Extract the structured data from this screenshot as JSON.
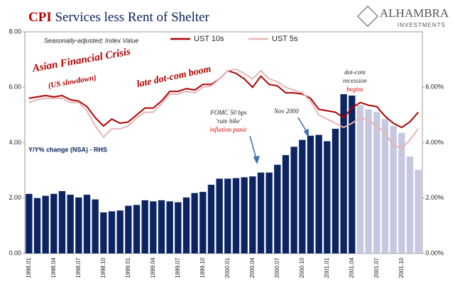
{
  "chart_data": {
    "type": "bar_line",
    "title_parts": [
      "CPI",
      "Services less Rent of Shelter"
    ],
    "subtitle": "Seasonally-adjusted; Index Value",
    "logo": [
      "ALHAMBRA",
      "INVESTMENTS"
    ],
    "annotations": [
      "Asian Financial Crisis",
      "(US slowdown)",
      "late dot-com boom",
      "FOMC 50 bps",
      "'rate hike'",
      "inflation panic",
      "Nov 2000",
      "dot-com",
      "recession",
      "begins",
      "Y/Y% change (NSA) - RHS"
    ],
    "categories": [
      "1998.01",
      null,
      null,
      "1998.04",
      null,
      null,
      "1998.07",
      null,
      null,
      "1998.10",
      null,
      null,
      "1999.01",
      null,
      null,
      "1999.04",
      null,
      null,
      "1999.07",
      null,
      null,
      "1999.10",
      null,
      null,
      "2000.01",
      null,
      null,
      "2000.04",
      null,
      null,
      "2000.07",
      null,
      null,
      "2000.10",
      null,
      null,
      "2001.01",
      null,
      null,
      "2001.04",
      null,
      null,
      "2001.07",
      null,
      null,
      "2001.10",
      null,
      null
    ],
    "ylim": [
      0,
      8
    ],
    "yticks": [
      {
        "value": 0,
        "label": "0.00"
      },
      {
        "value": 2,
        "label": "2.00"
      },
      {
        "value": 4,
        "label": "4.00"
      },
      {
        "value": 6,
        "label": "6.00"
      },
      {
        "value": 8,
        "label": "8.00"
      }
    ],
    "y2lim": [
      0,
      8
    ],
    "y2ticks": [
      {
        "value": 0,
        "label": "0.00%"
      },
      {
        "value": 2,
        "label": "2.00%"
      },
      {
        "value": 4,
        "label": "4.00%"
      },
      {
        "value": 6,
        "label": "6.00%"
      }
    ],
    "series": [
      {
        "name": "Y/Y% change (NSA) - RHS",
        "kind": "bar",
        "axis": "y2",
        "colors": [
          "#0c2461",
          "#0c2461",
          "#0c2461",
          "#0c2461",
          "#0c2461",
          "#0c2461",
          "#0c2461",
          "#0c2461",
          "#0c2461",
          "#0c2461",
          "#0c2461",
          "#0c2461",
          "#0c2461",
          "#0c2461",
          "#0c2461",
          "#0c2461",
          "#0c2461",
          "#0c2461",
          "#0c2461",
          "#0c2461",
          "#0c2461",
          "#0c2461",
          "#0c2461",
          "#0c2461",
          "#0c2461",
          "#0c2461",
          "#0c2461",
          "#0c2461",
          "#0c2461",
          "#0c2461",
          "#0c2461",
          "#0c2461",
          "#0c2461",
          "#0c2461",
          "#0c2461",
          "#0c2461",
          "#0c2461",
          "#0c2461",
          "#0c2461",
          "#0c2461",
          "#c5c8de",
          "#c5c8de",
          "#c5c8de",
          "#c5c8de",
          "#c5c8de",
          "#c5c8de",
          "#c5c8de",
          "#c5c8de"
        ],
        "values": [
          2.15,
          2.0,
          2.08,
          2.15,
          2.25,
          2.12,
          2.02,
          2.12,
          1.95,
          1.48,
          1.52,
          1.55,
          1.72,
          1.75,
          1.92,
          1.88,
          1.92,
          1.88,
          1.85,
          2.02,
          2.18,
          2.22,
          2.48,
          2.7,
          2.7,
          2.72,
          2.75,
          2.78,
          2.92,
          2.92,
          3.2,
          3.55,
          3.85,
          4.1,
          4.25,
          4.28,
          4.05,
          4.5,
          5.75,
          5.7,
          5.35,
          5.2,
          5.1,
          4.85,
          4.6,
          4.35,
          3.5,
          3.02
        ]
      },
      {
        "name": "UST 10s",
        "kind": "line",
        "color": "#b00000",
        "values": [
          5.6,
          5.65,
          5.7,
          5.65,
          5.7,
          5.55,
          5.5,
          5.3,
          4.9,
          4.6,
          4.85,
          4.7,
          4.75,
          5.0,
          5.25,
          5.25,
          5.5,
          5.85,
          5.85,
          5.95,
          5.9,
          6.1,
          6.1,
          6.3,
          6.6,
          6.5,
          6.3,
          6.0,
          6.4,
          6.1,
          6.05,
          5.8,
          5.8,
          5.75,
          5.6,
          5.2,
          5.15,
          5.1,
          4.9,
          5.25,
          5.45,
          5.35,
          5.3,
          4.95,
          4.7,
          4.55,
          4.75,
          5.1
        ]
      },
      {
        "name": "UST 5s",
        "kind": "line",
        "color": "#e8b4b4",
        "values": [
          5.45,
          5.55,
          5.6,
          5.6,
          5.6,
          5.45,
          5.45,
          5.15,
          4.6,
          4.2,
          4.5,
          4.5,
          4.6,
          4.9,
          5.1,
          5.1,
          5.4,
          5.75,
          5.75,
          5.85,
          5.8,
          6.0,
          6.05,
          6.3,
          6.6,
          6.65,
          6.5,
          6.3,
          6.6,
          6.3,
          6.2,
          6.0,
          5.9,
          5.8,
          5.5,
          5.0,
          4.85,
          4.7,
          4.55,
          4.7,
          4.9,
          4.8,
          4.6,
          4.35,
          3.9,
          3.8,
          4.1,
          4.5
        ]
      }
    ]
  }
}
